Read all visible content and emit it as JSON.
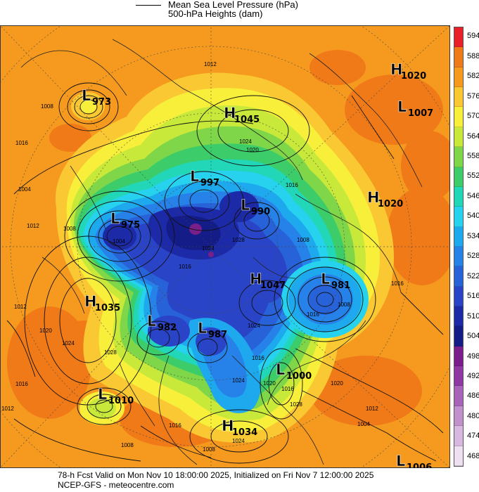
{
  "legend": {
    "line1": "Mean Sea Level Pressure (hPa)",
    "line2": "500-hPa Heights (dam)"
  },
  "footer": {
    "line1": "78-h Fcst Valid on Mon Nov 10 18:00:00 2025, Initialized on Fri Nov  7 12:00:00 2025",
    "line2": "NCEP-GFS  - meteocentre.com"
  },
  "colorbar": {
    "labels": [
      "594",
      "588",
      "582",
      "576",
      "570",
      "564",
      "558",
      "552",
      "546",
      "540",
      "534",
      "528",
      "522",
      "516",
      "510",
      "504",
      "498",
      "492",
      "486",
      "480",
      "474",
      "468"
    ],
    "colors": [
      "#e8202a",
      "#f07a18",
      "#f59a1e",
      "#f9c832",
      "#f8ef3a",
      "#c8e83a",
      "#7ed648",
      "#3ccd6a",
      "#22d6b8",
      "#26d2ee",
      "#1ea8ee",
      "#2682e8",
      "#2862d8",
      "#2a44c8",
      "#1c2aa8",
      "#141c88",
      "#7a1e8c",
      "#8e3aa2",
      "#a864b8",
      "#c290cc",
      "#d8b8e0",
      "#eee0f0"
    ]
  },
  "systems": [
    {
      "type": "H",
      "value": "1020"
    },
    {
      "type": "L",
      "value": "1007"
    },
    {
      "type": "L",
      "value": "973"
    },
    {
      "type": "H",
      "value": "1045"
    },
    {
      "type": "L",
      "value": "997"
    },
    {
      "type": "L",
      "value": "990"
    },
    {
      "type": "H",
      "value": "1020"
    },
    {
      "type": "L",
      "value": "975"
    },
    {
      "type": "H",
      "value": "1047"
    },
    {
      "type": "L",
      "value": "981"
    },
    {
      "type": "H",
      "value": "1035"
    },
    {
      "type": "L",
      "value": "982"
    },
    {
      "type": "L",
      "value": "987"
    },
    {
      "type": "L",
      "value": "1000"
    },
    {
      "type": "L",
      "value": "1010"
    },
    {
      "type": "H",
      "value": "1034"
    },
    {
      "type": "L",
      "value": "1006"
    }
  ],
  "isobar_labels": [
    "1012",
    "1008",
    "1016",
    "1024",
    "1020",
    "1016",
    "1004",
    "1012",
    "1008",
    "1004",
    "1024",
    "1028",
    "1008",
    "1016",
    "1008",
    "1016",
    "1016",
    "1012",
    "1020",
    "1024",
    "1028",
    "1016",
    "1024",
    "1016",
    "1020",
    "1016",
    "1012",
    "1020",
    "1024",
    "1012",
    "1028",
    "1008",
    "1004",
    "1024",
    "1016",
    "1008"
  ]
}
